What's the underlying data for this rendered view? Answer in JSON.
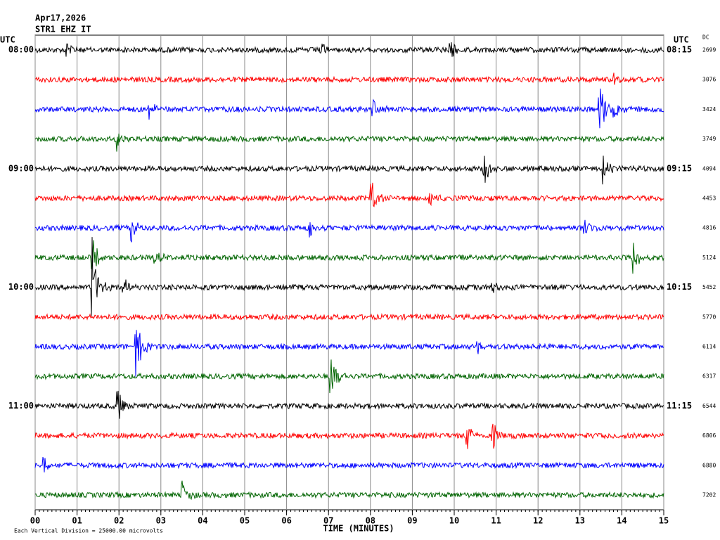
{
  "chart_data": {
    "type": "helicorder",
    "date": "Apr17,2026",
    "station": "STR1 EHZ IT",
    "left_axis_title": "UTC",
    "right_axis_title": "UTC",
    "dc_title": "DC",
    "x_axis_title": "TIME (MINUTES)",
    "scale_note": "Each Vertical Division = 25000.00 microvolts",
    "division_microvolts": 25000,
    "xlim": [
      0,
      15
    ],
    "xticks": [
      {
        "value": 0,
        "label": "00"
      },
      {
        "value": 1,
        "label": "01"
      },
      {
        "value": 2,
        "label": "02"
      },
      {
        "value": 3,
        "label": "03"
      },
      {
        "value": 4,
        "label": "04"
      },
      {
        "value": 5,
        "label": "05"
      },
      {
        "value": 6,
        "label": "06"
      },
      {
        "value": 7,
        "label": "07"
      },
      {
        "value": 8,
        "label": "08"
      },
      {
        "value": 9,
        "label": "09"
      },
      10,
      11,
      12,
      13,
      14,
      15
    ],
    "grid": true,
    "noise_microvolts": 2200,
    "rows": [
      {
        "left": "08:00",
        "right": "08:15",
        "dc": "2699",
        "color": "#000000",
        "events": [
          [
            0.75,
            8000
          ],
          [
            6.8,
            6000
          ],
          [
            9.9,
            10000
          ]
        ]
      },
      {
        "left": null,
        "right": null,
        "dc": "3076",
        "color": "#ff0000",
        "events": [
          [
            13.8,
            6000
          ]
        ]
      },
      {
        "left": null,
        "right": null,
        "dc": "3424",
        "color": "#0000ff",
        "events": [
          [
            2.7,
            10000
          ],
          [
            8.05,
            12000
          ],
          [
            13.45,
            25000
          ],
          [
            13.8,
            10000
          ]
        ]
      },
      {
        "left": null,
        "right": null,
        "dc": "3749",
        "color": "#006400",
        "events": [
          [
            1.95,
            10000
          ]
        ]
      },
      {
        "left": "09:00",
        "right": "09:15",
        "dc": "4094",
        "color": "#000000",
        "events": [
          [
            10.7,
            20000
          ],
          [
            13.55,
            12000
          ]
        ]
      },
      {
        "left": null,
        "right": null,
        "dc": "4453",
        "color": "#ff0000",
        "events": [
          [
            8.0,
            18000
          ],
          [
            9.4,
            8000
          ]
        ]
      },
      {
        "left": null,
        "right": null,
        "dc": "4816",
        "color": "#0000ff",
        "events": [
          [
            2.3,
            12000
          ],
          [
            6.55,
            10000
          ],
          [
            13.1,
            8000
          ]
        ]
      },
      {
        "left": null,
        "right": null,
        "dc": "5124",
        "color": "#006400",
        "events": [
          [
            1.35,
            18000
          ],
          [
            2.85,
            8000
          ],
          [
            14.25,
            15000
          ]
        ]
      },
      {
        "left": "10:00",
        "right": "10:15",
        "dc": "5452",
        "color": "#000000",
        "events": [
          [
            1.35,
            45000
          ],
          [
            2.1,
            8000
          ],
          [
            10.9,
            8000
          ]
        ]
      },
      {
        "left": null,
        "right": null,
        "dc": "5770",
        "color": "#ff0000",
        "events": []
      },
      {
        "left": null,
        "right": null,
        "dc": "6114",
        "color": "#0000ff",
        "events": [
          [
            2.4,
            30000
          ],
          [
            10.55,
            6000
          ]
        ]
      },
      {
        "left": null,
        "right": null,
        "dc": "6317",
        "color": "#006400",
        "events": [
          [
            7.05,
            22000
          ]
        ]
      },
      {
        "left": "11:00",
        "right": "11:15",
        "dc": "6544",
        "color": "#000000",
        "events": [
          [
            1.95,
            20000
          ]
        ]
      },
      {
        "left": null,
        "right": null,
        "dc": "6806",
        "color": "#ff0000",
        "events": [
          [
            10.3,
            12000
          ],
          [
            10.9,
            15000
          ]
        ]
      },
      {
        "left": null,
        "right": null,
        "dc": "6880",
        "color": "#0000ff",
        "events": [
          [
            0.2,
            10000
          ]
        ]
      },
      {
        "left": null,
        "right": null,
        "dc": "7202",
        "color": "#006400",
        "events": [
          [
            3.5,
            15000
          ]
        ]
      }
    ]
  }
}
